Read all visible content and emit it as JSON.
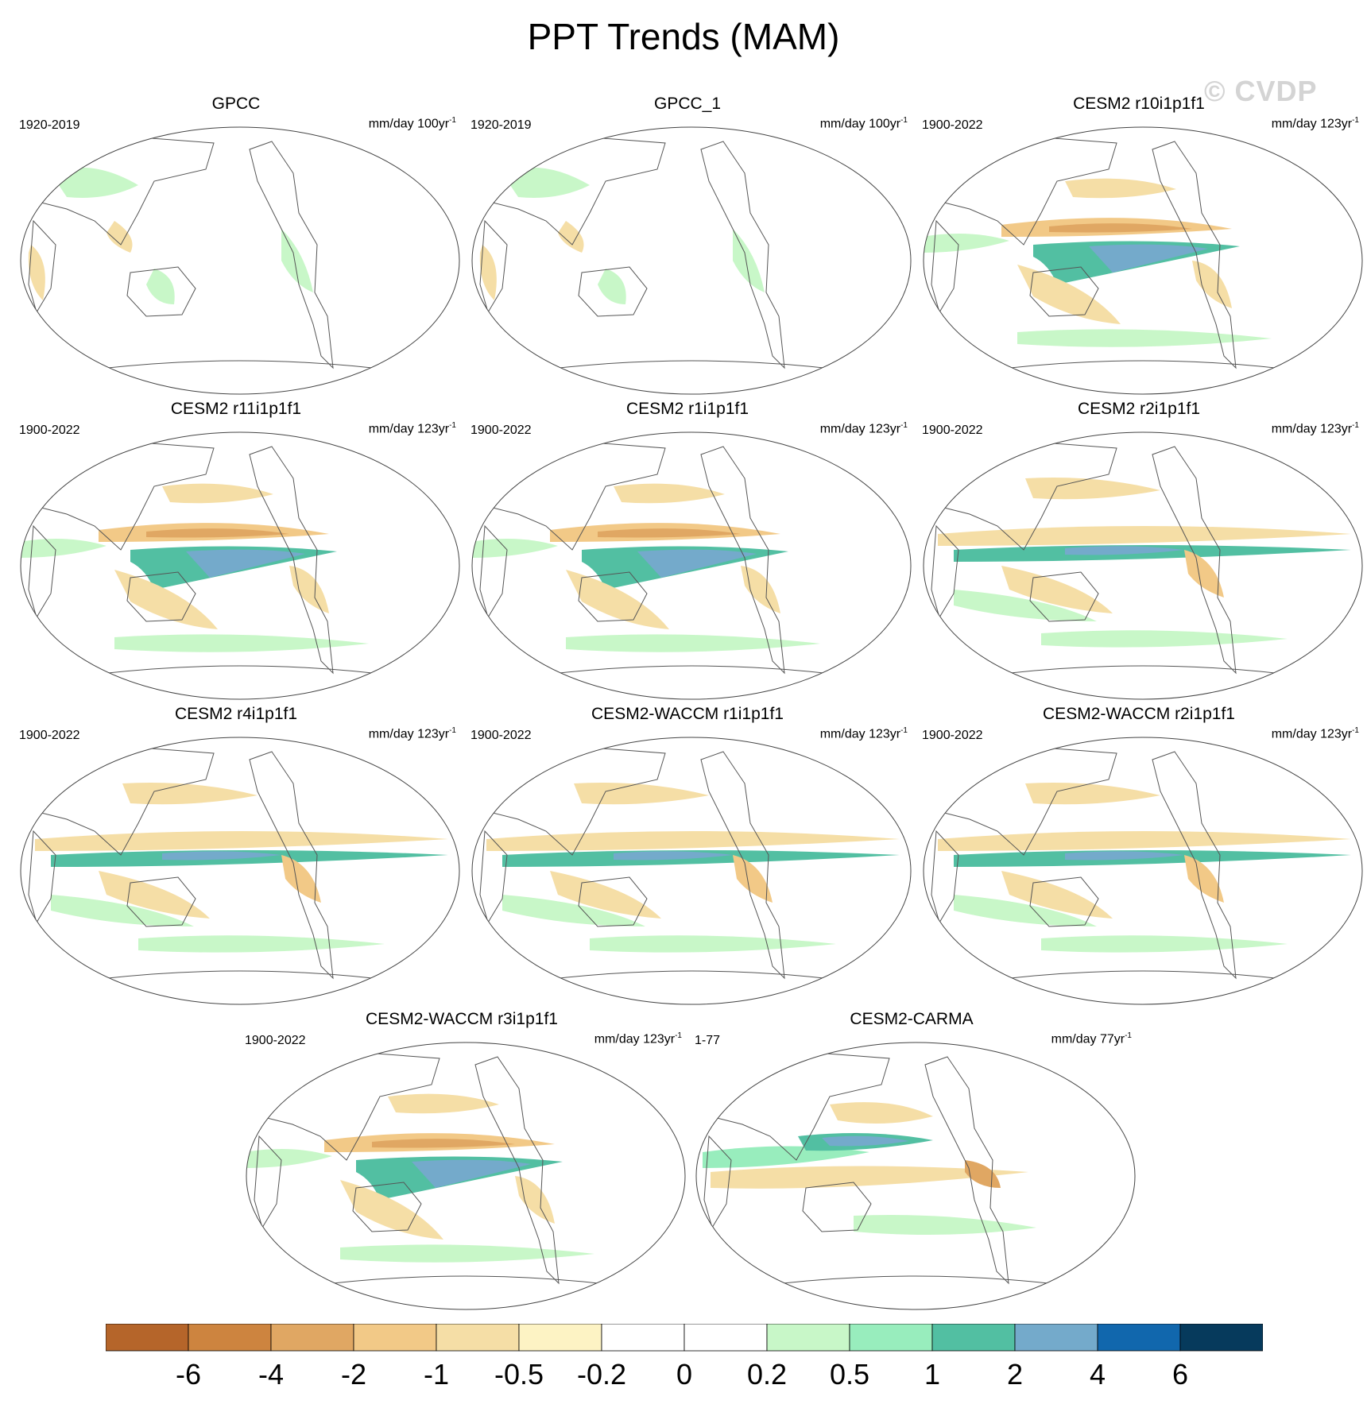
{
  "title": "PPT Trends (MAM)",
  "watermark": "© CVDP",
  "panels": [
    {
      "title": "GPCC",
      "years": "1920-2019",
      "units": "mm/day 100yr",
      "units_exp": "-1",
      "pattern": "obs"
    },
    {
      "title": "GPCC_1",
      "years": "1920-2019",
      "units": "mm/day 100yr",
      "units_exp": "-1",
      "pattern": "obs"
    },
    {
      "title": "CESM2 r10i1p1f1",
      "years": "1900-2022",
      "units": "mm/day 123yr",
      "units_exp": "-1",
      "pattern": "model_a"
    },
    {
      "title": "CESM2 r11i1p1f1",
      "years": "1900-2022",
      "units": "mm/day 123yr",
      "units_exp": "-1",
      "pattern": "model_a"
    },
    {
      "title": "CESM2 r1i1p1f1",
      "years": "1900-2022",
      "units": "mm/day 123yr",
      "units_exp": "-1",
      "pattern": "model_a"
    },
    {
      "title": "CESM2 r2i1p1f1",
      "years": "1900-2022",
      "units": "mm/day 123yr",
      "units_exp": "-1",
      "pattern": "model_b"
    },
    {
      "title": "CESM2 r4i1p1f1",
      "years": "1900-2022",
      "units": "mm/day 123yr",
      "units_exp": "-1",
      "pattern": "model_b"
    },
    {
      "title": "CESM2-WACCM r1i1p1f1",
      "years": "1900-2022",
      "units": "mm/day 123yr",
      "units_exp": "-1",
      "pattern": "model_b"
    },
    {
      "title": "CESM2-WACCM r2i1p1f1",
      "years": "1900-2022",
      "units": "mm/day 123yr",
      "units_exp": "-1",
      "pattern": "model_b"
    },
    {
      "title": "CESM2-WACCM r3i1p1f1",
      "years": "1900-2022",
      "units": "mm/day 123yr",
      "units_exp": "-1",
      "pattern": "model_a"
    },
    {
      "title": "CESM2-CARMA",
      "years": "1-77",
      "units": "mm/day 77yr",
      "units_exp": "-1",
      "pattern": "model_c"
    }
  ],
  "colorbar": {
    "colors": [
      "#b5652a",
      "#cd843f",
      "#e0a763",
      "#f2c987",
      "#f5dea6",
      "#fdf3c4",
      "#ffffff",
      "#ffffff",
      "#c8f7c8",
      "#98edbd",
      "#52bfa2",
      "#74aacb",
      "#1167ad",
      "#063a5c"
    ],
    "labels": [
      "-6",
      "-4",
      "-2",
      "-1",
      "-0.5",
      "-0.2",
      "0",
      "0.2",
      "0.5",
      "1",
      "2",
      "4",
      "6"
    ]
  }
}
